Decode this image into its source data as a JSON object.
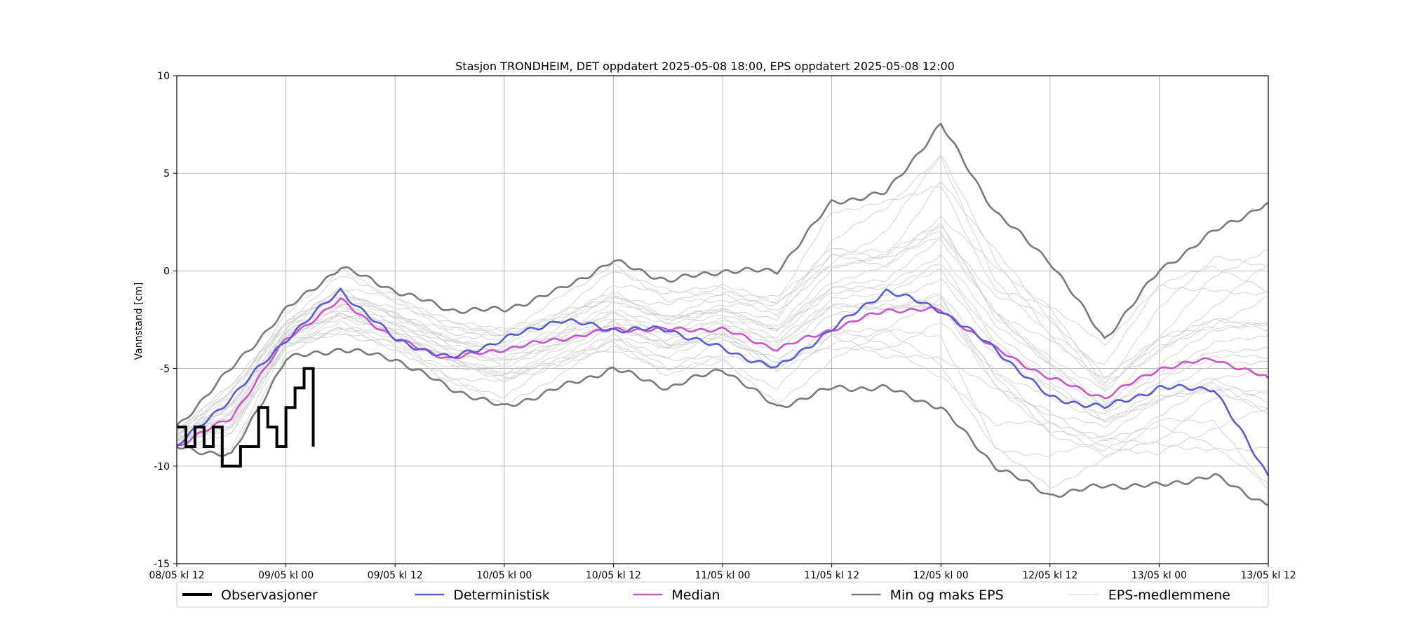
{
  "chart_data": {
    "type": "line",
    "title": "Stasjon TRONDHEIM, DET oppdatert 2025-05-08 18:00, EPS oppdatert 2025-05-08 12:00",
    "xlabel": "",
    "ylabel": "Vannstand [cm]",
    "x_unit": "datetime",
    "xlim": [
      "2025-05-08 12:00",
      "2025-05-13 12:00"
    ],
    "ylim": [
      -15,
      10
    ],
    "x_tick_labels": [
      "08/05 kl 12",
      "09/05 kl 00",
      "09/05 kl 12",
      "10/05 kl 00",
      "10/05 kl 12",
      "11/05 kl 00",
      "11/05 kl 12",
      "12/05 kl 00",
      "12/05 kl 12",
      "13/05 kl 00",
      "13/05 kl 12"
    ],
    "y_ticks": [
      -15,
      -10,
      -5,
      0,
      5,
      10
    ],
    "grid": true,
    "legend_position": "below plot",
    "colors": {
      "observed": "#000000",
      "deterministic": "#5b5bd6",
      "median": "#cc55cc",
      "minmax": "#7a7a7a",
      "members": "#d3d3d3"
    },
    "series": [
      {
        "name": "Observasjoner",
        "x": [
          "2025-05-08 12:00",
          "2025-05-08 13:00",
          "2025-05-08 14:00",
          "2025-05-08 15:00",
          "2025-05-08 16:00",
          "2025-05-08 17:00",
          "2025-05-08 18:00",
          "2025-05-08 19:00",
          "2025-05-08 20:00",
          "2025-05-08 21:00",
          "2025-05-08 22:00",
          "2025-05-08 23:00",
          "2025-05-09 00:00",
          "2025-05-09 01:00",
          "2025-05-09 02:00",
          "2025-05-09 03:00"
        ],
        "values": [
          -8,
          -9,
          -8,
          -9,
          -8,
          -10,
          -10,
          -9,
          -9,
          -7,
          -8,
          -9,
          -7,
          -6,
          -5,
          -9
        ]
      },
      {
        "name": "Deterministisk",
        "x": [
          "2025-05-08 12:00",
          "2025-05-08 18:00",
          "2025-05-09 00:00",
          "2025-05-09 06:00",
          "2025-05-09 12:00",
          "2025-05-09 18:00",
          "2025-05-10 00:00",
          "2025-05-10 06:00",
          "2025-05-10 12:00",
          "2025-05-10 18:00",
          "2025-05-11 00:00",
          "2025-05-11 06:00",
          "2025-05-11 12:00",
          "2025-05-11 18:00",
          "2025-05-12 00:00",
          "2025-05-12 06:00",
          "2025-05-12 12:00",
          "2025-05-12 18:00",
          "2025-05-13 00:00",
          "2025-05-13 06:00",
          "2025-05-13 12:00"
        ],
        "values": [
          -9,
          -6.5,
          -3.5,
          -1,
          -3.5,
          -4.5,
          -3.5,
          -2.5,
          -3,
          -3,
          -4,
          -5,
          -3,
          -1,
          -2,
          -4,
          -6.5,
          -7,
          -6,
          -6,
          -10.5
        ]
      },
      {
        "name": "Median",
        "x": [
          "2025-05-08 12:00",
          "2025-05-08 18:00",
          "2025-05-09 00:00",
          "2025-05-09 06:00",
          "2025-05-09 12:00",
          "2025-05-09 18:00",
          "2025-05-10 00:00",
          "2025-05-10 06:00",
          "2025-05-10 12:00",
          "2025-05-10 18:00",
          "2025-05-11 00:00",
          "2025-05-11 06:00",
          "2025-05-11 12:00",
          "2025-05-11 18:00",
          "2025-05-12 00:00",
          "2025-05-12 06:00",
          "2025-05-12 12:00",
          "2025-05-12 18:00",
          "2025-05-13 00:00",
          "2025-05-13 06:00",
          "2025-05-13 12:00"
        ],
        "values": [
          -9,
          -7.5,
          -3.5,
          -1.5,
          -3.5,
          -4.5,
          -4,
          -3.5,
          -3,
          -3,
          -3,
          -4,
          -3,
          -2,
          -2,
          -4,
          -5.5,
          -6.5,
          -5,
          -4.5,
          -5.5
        ]
      },
      {
        "name": "Min og maks EPS",
        "x": [
          "2025-05-08 12:00",
          "2025-05-08 18:00",
          "2025-05-09 00:00",
          "2025-05-09 06:00",
          "2025-05-09 12:00",
          "2025-05-09 18:00",
          "2025-05-10 00:00",
          "2025-05-10 06:00",
          "2025-05-10 12:00",
          "2025-05-10 18:00",
          "2025-05-11 00:00",
          "2025-05-11 06:00",
          "2025-05-11 12:00",
          "2025-05-11 18:00",
          "2025-05-12 00:00",
          "2025-05-12 06:00",
          "2025-05-12 12:00",
          "2025-05-12 18:00",
          "2025-05-13 00:00",
          "2025-05-13 06:00",
          "2025-05-13 12:00"
        ],
        "max": [
          -8,
          -5,
          -2,
          0.2,
          -1,
          -2,
          -2,
          -1,
          0.5,
          -0.5,
          0,
          0,
          3.5,
          4,
          7.5,
          3,
          0.5,
          -3.5,
          0,
          2,
          3.5
        ],
        "min": [
          -9,
          -9.5,
          -4.5,
          -4,
          -4.5,
          -6,
          -7,
          -6,
          -5,
          -6,
          -5,
          -7,
          -6,
          -6,
          -7,
          -10,
          -11.5,
          -11,
          -11,
          -10.5,
          -12
        ]
      }
    ],
    "legend": [
      {
        "label": "Observasjoner",
        "style": "observed"
      },
      {
        "label": "Deterministisk",
        "style": "deterministic"
      },
      {
        "label": "Median",
        "style": "median"
      },
      {
        "label": "Min og maks EPS",
        "style": "minmax"
      },
      {
        "label": "EPS-medlemmene",
        "style": "members"
      }
    ]
  }
}
